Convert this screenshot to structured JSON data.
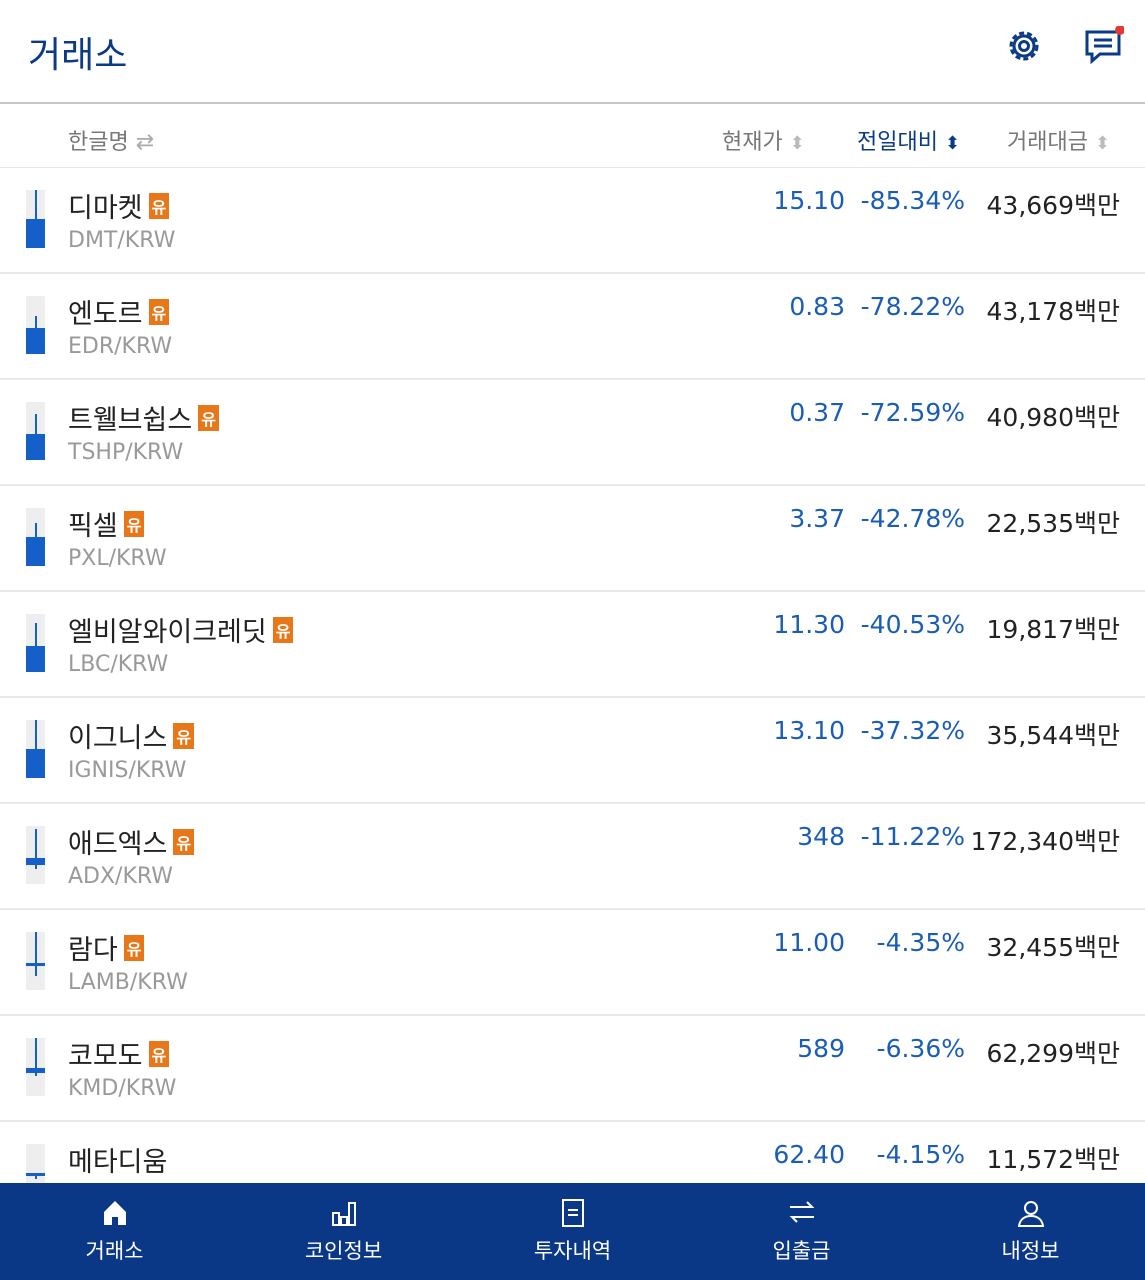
{
  "header": {
    "title": "거래소",
    "icons": [
      "gear-icon",
      "chat-icon"
    ],
    "notification_dot_color": "#e53935"
  },
  "columns": {
    "name": "한글명",
    "price": "현재가",
    "change": "전일대비",
    "volume": "거래대금"
  },
  "badge": "유",
  "rows": [
    {
      "name": "디마켓",
      "symbol": "DMT/KRW",
      "price": "15.10",
      "change": "-85.34%",
      "volume": "43,669백만",
      "badge": true,
      "candle": {
        "wick": [
          0,
          0.5
        ],
        "body": [
          0.5,
          1
        ]
      }
    },
    {
      "name": "엔도르",
      "symbol": "EDR/KRW",
      "price": "0.83",
      "change": "-78.22%",
      "volume": "43,178백만",
      "badge": true,
      "candle": {
        "wick": [
          0.35,
          0.55
        ],
        "body": [
          0.55,
          1
        ]
      }
    },
    {
      "name": "트웰브쉽스",
      "symbol": "TSHP/KRW",
      "price": "0.37",
      "change": "-72.59%",
      "volume": "40,980백만",
      "badge": true,
      "candle": {
        "wick": [
          0.2,
          0.55
        ],
        "body": [
          0.55,
          1
        ]
      }
    },
    {
      "name": "픽셀",
      "symbol": "PXL/KRW",
      "price": "3.37",
      "change": "-42.78%",
      "volume": "22,535백만",
      "badge": true,
      "candle": {
        "wick": [
          0.25,
          0.5
        ],
        "body": [
          0.5,
          1
        ]
      }
    },
    {
      "name": "엘비알와이크레딧",
      "symbol": "LBC/KRW",
      "price": "11.30",
      "change": "-40.53%",
      "volume": "19,817백만",
      "badge": true,
      "candle": {
        "wick": [
          0.15,
          0.55
        ],
        "body": [
          0.55,
          1
        ]
      }
    },
    {
      "name": "이그니스",
      "symbol": "IGNIS/KRW",
      "price": "13.10",
      "change": "-37.32%",
      "volume": "35,544백만",
      "badge": true,
      "candle": {
        "wick": [
          0,
          0.5
        ],
        "body": [
          0.5,
          1
        ]
      }
    },
    {
      "name": "애드엑스",
      "symbol": "ADX/KRW",
      "price": "348",
      "change": "-11.22%",
      "volume": "172,340백만",
      "badge": true,
      "candle": {
        "wick": [
          0.05,
          0.75
        ],
        "body": [
          0.55,
          0.68
        ]
      }
    },
    {
      "name": "람다",
      "symbol": "LAMB/KRW",
      "price": "11.00",
      "change": "-4.35%",
      "volume": "32,455백만",
      "badge": true,
      "candle": {
        "wick": [
          0,
          0.75
        ],
        "body": [
          0.53,
          0.58
        ]
      }
    },
    {
      "name": "코모도",
      "symbol": "KMD/KRW",
      "price": "589",
      "change": "-6.36%",
      "volume": "62,299백만",
      "badge": true,
      "candle": {
        "wick": [
          0,
          0.65
        ],
        "body": [
          0.52,
          0.6
        ]
      }
    },
    {
      "name": "메타디움",
      "symbol": "",
      "price": "62.40",
      "change": "-4.15%",
      "volume": "11,572백만",
      "badge": false,
      "candle": {
        "wick": [
          0.5,
          0.6
        ],
        "body": [
          0.5,
          0.55
        ]
      }
    }
  ],
  "nav": [
    {
      "label": "거래소",
      "icon": "home-icon"
    },
    {
      "label": "코인정보",
      "icon": "bar-chart-icon"
    },
    {
      "label": "투자내역",
      "icon": "document-icon"
    },
    {
      "label": "입출금",
      "icon": "transfer-icon"
    },
    {
      "label": "내정보",
      "icon": "user-icon"
    }
  ]
}
